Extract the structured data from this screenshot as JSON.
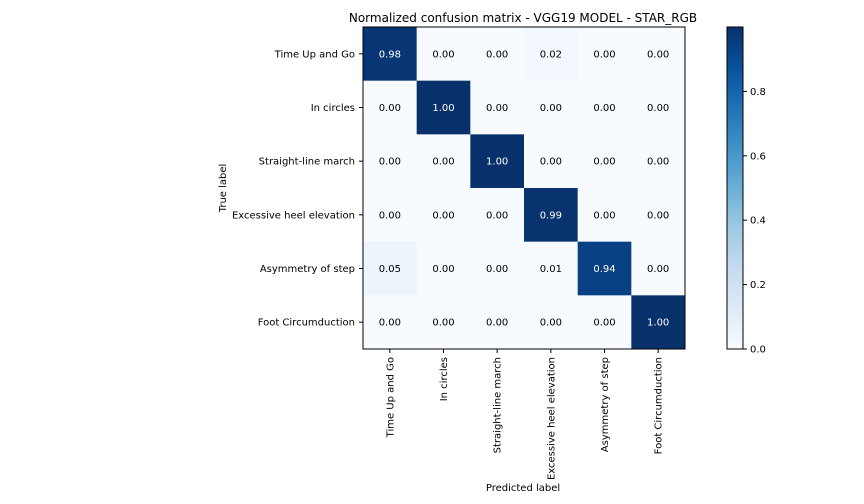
{
  "chart_data": {
    "type": "heatmap",
    "title": "Normalized confusion matrix - VGG19 MODEL - STAR_RGB",
    "xlabel": "Predicted label",
    "ylabel": "True label",
    "categories": [
      "Time Up and Go",
      "In circles",
      "Straight-line march",
      "Excessive heel elevation",
      "Asymmetry of step",
      "Foot Circumduction"
    ],
    "values": [
      [
        0.98,
        0.0,
        0.0,
        0.02,
        0.0,
        0.0
      ],
      [
        0.0,
        1.0,
        0.0,
        0.0,
        0.0,
        0.0
      ],
      [
        0.0,
        0.0,
        1.0,
        0.0,
        0.0,
        0.0
      ],
      [
        0.0,
        0.0,
        0.0,
        0.99,
        0.0,
        0.0
      ],
      [
        0.05,
        0.0,
        0.0,
        0.01,
        0.94,
        0.0
      ],
      [
        0.0,
        0.0,
        0.0,
        0.0,
        0.0,
        1.0
      ]
    ],
    "colormap": "Blues",
    "colorbar_range": [
      0,
      1
    ],
    "colorbar_ticks": [
      "0.0",
      "0.2",
      "0.4",
      "0.6",
      "0.8"
    ]
  }
}
